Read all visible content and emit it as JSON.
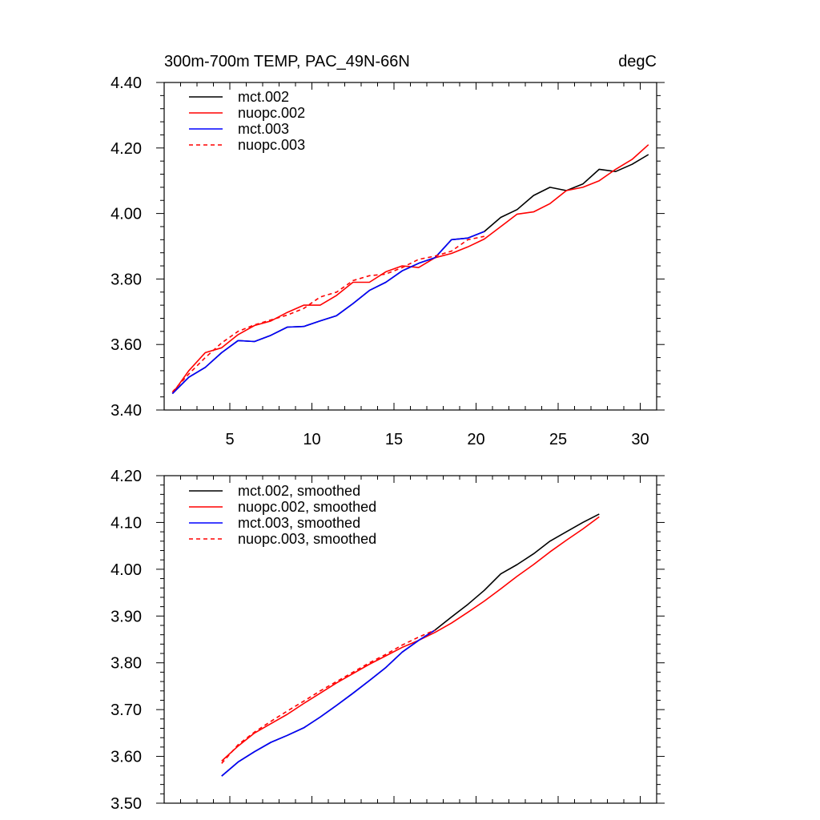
{
  "chart_data": [
    {
      "type": "line",
      "title_left": "300m-700m TEMP, PAC_49N-66N",
      "title_right": "degC",
      "xlabel": "",
      "ylabel": "",
      "xlim": [
        1,
        31
      ],
      "ylim": [
        3.4,
        4.4
      ],
      "xticks": [
        5,
        10,
        15,
        20,
        25,
        30
      ],
      "yticks": [
        "3.40",
        "3.60",
        "3.80",
        "4.00",
        "4.20",
        "4.40"
      ],
      "legend_position": "top-left",
      "series": [
        {
          "name": "mct.002",
          "color": "#000000",
          "dash": "solid",
          "x": [
            1.5,
            2.5,
            3.5,
            4.5,
            5.5,
            6.5,
            7.5,
            8.5,
            9.5,
            10.5,
            11.5,
            12.5,
            13.5,
            14.5,
            15.5,
            16.5,
            17.5,
            18.5,
            19.5,
            20.5,
            21.5,
            22.5,
            23.5,
            24.5,
            25.5,
            26.5,
            27.5,
            28.5,
            29.5,
            30.5
          ],
          "y": [
            3.45,
            3.5,
            3.53,
            3.575,
            3.612,
            3.609,
            3.628,
            3.653,
            3.655,
            3.672,
            3.688,
            3.725,
            3.765,
            3.79,
            3.825,
            3.848,
            3.865,
            3.92,
            3.925,
            3.945,
            3.988,
            4.012,
            4.055,
            4.08,
            4.07,
            4.09,
            4.135,
            4.128,
            4.15,
            4.18
          ]
        },
        {
          "name": "nuopc.002",
          "color": "#ff0000",
          "dash": "solid",
          "x": [
            1.5,
            2.5,
            3.5,
            4.5,
            5.5,
            6.5,
            7.5,
            8.5,
            9.5,
            10.5,
            11.5,
            12.5,
            13.5,
            14.5,
            15.5,
            16.5,
            17.5,
            18.5,
            19.5,
            20.5,
            21.5,
            22.5,
            23.5,
            24.5,
            25.5,
            26.5,
            27.5,
            28.5,
            29.5,
            30.5
          ],
          "y": [
            3.45,
            3.52,
            3.575,
            3.59,
            3.63,
            3.658,
            3.672,
            3.698,
            3.72,
            3.72,
            3.75,
            3.79,
            3.79,
            3.822,
            3.84,
            3.835,
            3.865,
            3.878,
            3.898,
            3.922,
            3.96,
            3.998,
            4.005,
            4.03,
            4.07,
            4.08,
            4.1,
            4.135,
            4.165,
            4.21
          ]
        },
        {
          "name": "mct.003",
          "color": "#0000ff",
          "dash": "solid",
          "x": [
            1.5,
            2.5,
            3.5,
            4.5,
            5.5,
            6.5,
            7.5,
            8.5,
            9.5,
            10.5,
            11.5,
            12.5,
            13.5,
            14.5,
            15.5,
            16.5,
            17.5,
            18.5,
            19.5,
            20.5
          ],
          "y": [
            3.45,
            3.5,
            3.53,
            3.575,
            3.612,
            3.609,
            3.628,
            3.653,
            3.655,
            3.672,
            3.688,
            3.725,
            3.765,
            3.79,
            3.825,
            3.848,
            3.865,
            3.92,
            3.925,
            3.945
          ]
        },
        {
          "name": "nuopc.003",
          "color": "#ff0000",
          "dash": "dashed",
          "x": [
            1.5,
            2.5,
            3.5,
            4.5,
            5.5,
            6.5,
            7.5,
            8.5,
            9.5,
            10.5,
            11.5,
            12.5,
            13.5,
            14.5,
            15.5,
            16.5,
            17.5,
            18.5,
            19.5,
            20.5
          ],
          "y": [
            3.455,
            3.51,
            3.56,
            3.605,
            3.64,
            3.66,
            3.675,
            3.69,
            3.71,
            3.745,
            3.76,
            3.795,
            3.81,
            3.815,
            3.835,
            3.86,
            3.87,
            3.885,
            3.92,
            3.93
          ]
        }
      ]
    },
    {
      "type": "line",
      "title_left": "",
      "title_right": "",
      "xlabel": "",
      "ylabel": "",
      "xlim": [
        1,
        31
      ],
      "ylim": [
        3.5,
        4.2
      ],
      "xticks": [
        5,
        10,
        15,
        20,
        25,
        30
      ],
      "yticks": [
        "3.50",
        "3.60",
        "3.70",
        "3.80",
        "3.90",
        "4.00",
        "4.10",
        "4.20"
      ],
      "legend_position": "top-left",
      "series": [
        {
          "name": "mct.002, smoothed",
          "color": "#000000",
          "dash": "solid",
          "x": [
            4.5,
            5.5,
            6.5,
            7.5,
            8.5,
            9.5,
            10.5,
            11.5,
            12.5,
            13.5,
            14.5,
            15.5,
            16.5,
            17.5,
            18.5,
            19.5,
            20.5,
            21.5,
            22.5,
            23.5,
            24.5,
            25.5,
            26.5,
            27.5
          ],
          "y": [
            3.558,
            3.588,
            3.61,
            3.63,
            3.645,
            3.661,
            3.684,
            3.709,
            3.735,
            3.762,
            3.79,
            3.823,
            3.848,
            3.87,
            3.898,
            3.925,
            3.955,
            3.99,
            4.01,
            4.033,
            4.06,
            4.08,
            4.1,
            4.118
          ]
        },
        {
          "name": "nuopc.002, smoothed",
          "color": "#ff0000",
          "dash": "solid",
          "x": [
            4.5,
            5.5,
            6.5,
            7.5,
            8.5,
            9.5,
            10.5,
            11.5,
            12.5,
            13.5,
            14.5,
            15.5,
            16.5,
            17.5,
            18.5,
            19.5,
            20.5,
            21.5,
            22.5,
            23.5,
            24.5,
            25.5,
            26.5,
            27.5
          ],
          "y": [
            3.59,
            3.622,
            3.65,
            3.67,
            3.69,
            3.713,
            3.735,
            3.757,
            3.777,
            3.797,
            3.815,
            3.833,
            3.848,
            3.865,
            3.885,
            3.908,
            3.932,
            3.958,
            3.985,
            4.01,
            4.037,
            4.062,
            4.086,
            4.112
          ]
        },
        {
          "name": "mct.003, smoothed",
          "color": "#0000ff",
          "dash": "solid",
          "x": [
            4.5,
            5.5,
            6.5,
            7.5,
            8.5,
            9.5,
            10.5,
            11.5,
            12.5,
            13.5,
            14.5,
            15.5,
            16.5,
            17.5
          ],
          "y": [
            3.558,
            3.588,
            3.61,
            3.63,
            3.645,
            3.661,
            3.684,
            3.709,
            3.735,
            3.762,
            3.79,
            3.823,
            3.848,
            3.87
          ]
        },
        {
          "name": "nuopc.003, smoothed",
          "color": "#ff0000",
          "dash": "dashed",
          "x": [
            4.5,
            5.5,
            6.5,
            7.5,
            8.5,
            9.5,
            10.5,
            11.5,
            12.5,
            13.5,
            14.5,
            15.5,
            16.5,
            17.5
          ],
          "y": [
            3.585,
            3.625,
            3.652,
            3.675,
            3.697,
            3.718,
            3.74,
            3.76,
            3.78,
            3.8,
            3.818,
            3.838,
            3.855,
            3.87
          ]
        }
      ]
    }
  ]
}
